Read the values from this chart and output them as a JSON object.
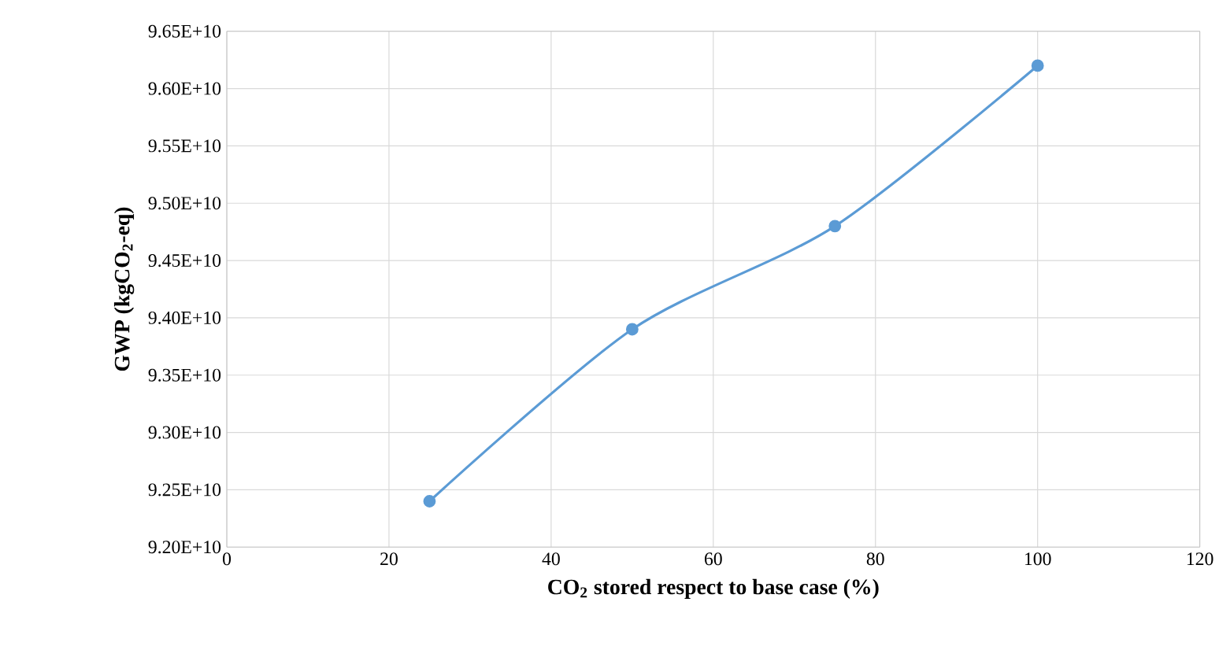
{
  "chart_data": {
    "type": "line",
    "xlabel": "CO$_{2}$ stored respect to base case (%)",
    "ylabel": "GWP (kgCO$_{2}$-eq)",
    "x": [
      25,
      50,
      75,
      100
    ],
    "series": [
      {
        "color": "#5b9bd5",
        "values": [
          92400000000.0,
          93900000000.0,
          94800000000.0,
          96200000000.0
        ]
      }
    ],
    "xlim": [
      0,
      120
    ],
    "xticks": [
      0,
      20,
      40,
      60,
      80,
      100,
      120
    ],
    "ylim": [
      92000000000.0,
      96500000000.0
    ],
    "yticks": [
      {
        "value": 92000000000.0,
        "label": "9.20E+10"
      },
      {
        "value": 92500000000.0,
        "label": "9.25E+10"
      },
      {
        "value": 93000000000.0,
        "label": "9.30E+10"
      },
      {
        "value": 93500000000.0,
        "label": "9.35E+10"
      },
      {
        "value": 94000000000.0,
        "label": "9.40E+10"
      },
      {
        "value": 94500000000.0,
        "label": "9.45E+10"
      },
      {
        "value": 95000000000.0,
        "label": "9.50E+10"
      },
      {
        "value": 95500000000.0,
        "label": "9.55E+10"
      },
      {
        "value": 96000000000.0,
        "label": "9.60E+10"
      },
      {
        "value": 96500000000.0,
        "label": "9.65E+10"
      }
    ],
    "grid": true,
    "marker": "circle",
    "line_style": "solid"
  }
}
